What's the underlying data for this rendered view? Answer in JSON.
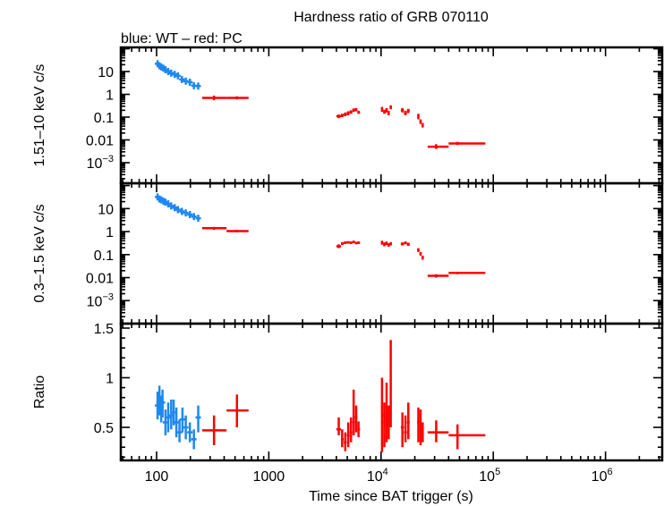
{
  "chart_data": {
    "type": "scatter",
    "title": "Hardness ratio of GRB 070110",
    "subtitle": "blue: WT – red: PC",
    "xlabel": "Time since BAT trigger (s)",
    "xscale": "log",
    "xlim": [
      48,
      3200000
    ],
    "xticks": [
      {
        "base": "100",
        "exp": ""
      },
      {
        "base": "1000",
        "exp": ""
      },
      {
        "base": "10",
        "exp": "4"
      },
      {
        "base": "10",
        "exp": "5"
      },
      {
        "base": "10",
        "exp": "6"
      }
    ],
    "xtick_values": [
      100,
      1000,
      10000,
      100000,
      1000000
    ],
    "colors": {
      "WT": "#1e88f0",
      "PC": "#ff0000"
    },
    "panels": [
      {
        "ylabel": "1.51–10 keV c/s",
        "yscale": "log",
        "ylim": [
          0.000125,
          115
        ],
        "yticks": [
          {
            "v": 10,
            "base": "10",
            "exp": ""
          },
          {
            "v": 1,
            "base": "1",
            "exp": ""
          },
          {
            "v": 0.1,
            "base": "0.1",
            "exp": ""
          },
          {
            "v": 0.01,
            "base": "0.01",
            "exp": ""
          },
          {
            "v": 0.001,
            "base": "10",
            "exp": "−3"
          }
        ],
        "WT": [
          [
            102,
            22
          ],
          [
            106,
            18
          ],
          [
            110,
            16
          ],
          [
            115,
            14
          ],
          [
            120,
            12
          ],
          [
            127,
            10
          ],
          [
            135,
            8.5
          ],
          [
            145,
            7.5
          ],
          [
            155,
            6.5
          ],
          [
            168,
            4.5
          ],
          [
            182,
            3.8
          ],
          [
            198,
            3.4
          ],
          [
            215,
            2.4
          ],
          [
            235,
            2.3
          ]
        ],
        "PC": [
          [
            325,
            255,
            420,
            0.7,
            0.55,
            0.88
          ],
          [
            520,
            420,
            660,
            0.7,
            0.6,
            0.82
          ],
          [
            4200,
            4000,
            4400,
            0.11,
            0.09,
            0.13
          ],
          [
            4500,
            4400,
            4650,
            0.12,
            0.1,
            0.14
          ],
          [
            4800,
            4650,
            4950,
            0.13,
            0.11,
            0.16
          ],
          [
            5100,
            4950,
            5250,
            0.15,
            0.12,
            0.18
          ],
          [
            5400,
            5250,
            5550,
            0.17,
            0.14,
            0.2
          ],
          [
            5700,
            5550,
            5850,
            0.2,
            0.17,
            0.24
          ],
          [
            6000,
            5850,
            6150,
            0.21,
            0.18,
            0.25
          ],
          [
            6300,
            6150,
            6500,
            0.16,
            0.14,
            0.19
          ],
          [
            10200,
            10000,
            10450,
            0.22,
            0.17,
            0.28
          ],
          [
            10700,
            10450,
            10950,
            0.17,
            0.14,
            0.21
          ],
          [
            11200,
            10950,
            11450,
            0.2,
            0.16,
            0.25
          ],
          [
            11700,
            11450,
            11950,
            0.15,
            0.12,
            0.19
          ],
          [
            12200,
            11950,
            12450,
            0.27,
            0.22,
            0.33
          ],
          [
            15500,
            15000,
            16000,
            0.2,
            0.16,
            0.25
          ],
          [
            16500,
            16000,
            17000,
            0.15,
            0.12,
            0.19
          ],
          [
            17500,
            17000,
            18000,
            0.19,
            0.15,
            0.23
          ],
          [
            21500,
            21000,
            22000,
            0.11,
            0.08,
            0.14
          ],
          [
            22500,
            22000,
            23000,
            0.065,
            0.05,
            0.08
          ],
          [
            23500,
            23000,
            24000,
            0.045,
            0.035,
            0.055
          ],
          [
            31000,
            26000,
            40000,
            0.005,
            0.004,
            0.0065
          ],
          [
            48000,
            40000,
            85000,
            0.007,
            0.006,
            0.0082
          ]
        ]
      },
      {
        "ylabel": "0.3–1.5 keV c/s",
        "yscale": "log",
        "ylim": [
          0.0001,
          126
        ],
        "yticks": [
          {
            "v": 10,
            "base": "10",
            "exp": ""
          },
          {
            "v": 1,
            "base": "1",
            "exp": ""
          },
          {
            "v": 0.1,
            "base": "0.1",
            "exp": ""
          },
          {
            "v": 0.01,
            "base": "0.01",
            "exp": ""
          },
          {
            "v": 0.001,
            "base": "10",
            "exp": "−3"
          }
        ],
        "WT": [
          [
            102,
            32
          ],
          [
            106,
            26
          ],
          [
            110,
            24
          ],
          [
            115,
            21
          ],
          [
            120,
            19
          ],
          [
            127,
            16
          ],
          [
            135,
            13
          ],
          [
            145,
            11
          ],
          [
            155,
            9
          ],
          [
            168,
            7.5
          ],
          [
            182,
            6.5
          ],
          [
            198,
            5.5
          ],
          [
            215,
            4.5
          ],
          [
            235,
            3.8
          ]
        ],
        "PC": [
          [
            325,
            255,
            420,
            1.4,
            1.2,
            1.6
          ],
          [
            520,
            420,
            660,
            1.05,
            0.92,
            1.2
          ],
          [
            4200,
            4000,
            4400,
            0.23,
            0.19,
            0.28
          ],
          [
            4500,
            4400,
            4650,
            0.3,
            0.26,
            0.35
          ],
          [
            4800,
            4650,
            4950,
            0.33,
            0.29,
            0.37
          ],
          [
            5100,
            4950,
            5250,
            0.34,
            0.3,
            0.38
          ],
          [
            5400,
            5250,
            5550,
            0.33,
            0.29,
            0.37
          ],
          [
            5700,
            5550,
            5850,
            0.36,
            0.32,
            0.4
          ],
          [
            6000,
            5850,
            6150,
            0.32,
            0.28,
            0.36
          ],
          [
            6300,
            6150,
            6500,
            0.33,
            0.29,
            0.37
          ],
          [
            10200,
            10000,
            10450,
            0.33,
            0.27,
            0.4
          ],
          [
            10700,
            10450,
            10950,
            0.28,
            0.23,
            0.34
          ],
          [
            11200,
            10950,
            11450,
            0.31,
            0.26,
            0.37
          ],
          [
            11700,
            11450,
            11950,
            0.26,
            0.22,
            0.31
          ],
          [
            12200,
            11950,
            12450,
            0.3,
            0.25,
            0.35
          ],
          [
            15500,
            15000,
            16000,
            0.29,
            0.25,
            0.34
          ],
          [
            16500,
            16000,
            17000,
            0.32,
            0.28,
            0.37
          ],
          [
            17500,
            17000,
            18000,
            0.28,
            0.24,
            0.33
          ],
          [
            21500,
            21000,
            22000,
            0.16,
            0.13,
            0.19
          ],
          [
            22500,
            22000,
            23000,
            0.11,
            0.09,
            0.13
          ],
          [
            23500,
            23000,
            24000,
            0.075,
            0.06,
            0.09
          ],
          [
            31000,
            26000,
            40000,
            0.012,
            0.01,
            0.014
          ],
          [
            48000,
            40000,
            85000,
            0.016,
            0.014,
            0.018
          ]
        ]
      },
      {
        "ylabel": "Ratio",
        "yscale": "linear",
        "ylim": [
          0.167,
          1.545
        ],
        "yticks": [
          {
            "v": 1.5,
            "base": "1.5",
            "exp": ""
          },
          {
            "v": 1,
            "base": "1",
            "exp": ""
          },
          {
            "v": 0.5,
            "base": "0.5",
            "exp": ""
          }
        ],
        "WT": [
          [
            102,
            0.72,
            0.58,
            0.86
          ],
          [
            106,
            0.8,
            0.62,
            0.92
          ],
          [
            110,
            0.7,
            0.55,
            0.82
          ],
          [
            113,
            0.75,
            0.6,
            0.88
          ],
          [
            120,
            0.55,
            0.42,
            0.68
          ],
          [
            127,
            0.6,
            0.45,
            0.75
          ],
          [
            135,
            0.62,
            0.48,
            0.78
          ],
          [
            142,
            0.65,
            0.52,
            0.78
          ],
          [
            150,
            0.55,
            0.4,
            0.7
          ],
          [
            160,
            0.45,
            0.35,
            0.58
          ],
          [
            170,
            0.58,
            0.45,
            0.7
          ],
          [
            182,
            0.5,
            0.38,
            0.62
          ],
          [
            198,
            0.45,
            0.35,
            0.55
          ],
          [
            215,
            0.38,
            0.28,
            0.48
          ],
          [
            235,
            0.6,
            0.45,
            0.72
          ]
        ],
        "PC": [
          [
            325,
            255,
            420,
            0.47,
            0.32,
            0.62
          ],
          [
            520,
            420,
            660,
            0.67,
            0.5,
            0.83
          ],
          [
            4200,
            4000,
            4400,
            0.48,
            0.42,
            0.6
          ],
          [
            4500,
            4400,
            4650,
            0.38,
            0.3,
            0.48
          ],
          [
            4800,
            4650,
            4950,
            0.35,
            0.26,
            0.45
          ],
          [
            5100,
            4950,
            5250,
            0.42,
            0.3,
            0.55
          ],
          [
            5400,
            5250,
            5550,
            0.45,
            0.35,
            0.6
          ],
          [
            5700,
            5550,
            5850,
            0.55,
            0.42,
            0.88
          ],
          [
            6000,
            5850,
            6150,
            0.6,
            0.45,
            0.72
          ],
          [
            6300,
            6150,
            6500,
            0.48,
            0.4,
            0.56
          ],
          [
            10200,
            10000,
            10450,
            0.55,
            0.25,
            1.0
          ],
          [
            10700,
            10450,
            10950,
            0.62,
            0.3,
            0.75
          ],
          [
            11200,
            10950,
            11450,
            0.6,
            0.35,
            0.95
          ],
          [
            11700,
            11450,
            11950,
            0.52,
            0.38,
            0.72
          ],
          [
            12200,
            11950,
            12450,
            0.9,
            0.5,
            1.38
          ],
          [
            15500,
            15000,
            16000,
            0.5,
            0.3,
            0.65
          ],
          [
            16500,
            16000,
            17000,
            0.45,
            0.35,
            0.62
          ],
          [
            17500,
            17000,
            18000,
            0.55,
            0.38,
            0.75
          ],
          [
            21500,
            21000,
            22000,
            0.55,
            0.35,
            0.7
          ],
          [
            22500,
            22000,
            23000,
            0.48,
            0.32,
            0.68
          ],
          [
            23500,
            23000,
            24000,
            0.45,
            0.35,
            0.55
          ],
          [
            31000,
            26000,
            40000,
            0.45,
            0.35,
            0.57
          ],
          [
            48000,
            40000,
            85000,
            0.42,
            0.28,
            0.53
          ]
        ]
      }
    ]
  }
}
